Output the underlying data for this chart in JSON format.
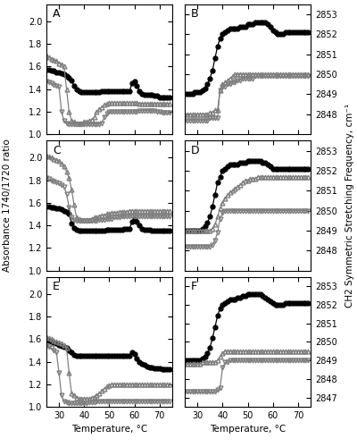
{
  "temp": [
    25,
    26,
    27,
    28,
    29,
    30,
    31,
    32,
    33,
    34,
    35,
    36,
    37,
    38,
    39,
    40,
    41,
    42,
    43,
    44,
    45,
    46,
    47,
    48,
    49,
    50,
    51,
    52,
    53,
    54,
    55,
    56,
    57,
    58,
    59,
    60,
    61,
    62,
    63,
    64,
    65,
    66,
    67,
    68,
    69,
    70,
    71,
    72,
    73,
    74
  ],
  "A_circles": [
    1.57,
    1.57,
    1.56,
    1.56,
    1.55,
    1.55,
    1.54,
    1.53,
    1.52,
    1.5,
    1.48,
    1.43,
    1.4,
    1.38,
    1.37,
    1.37,
    1.37,
    1.37,
    1.37,
    1.37,
    1.37,
    1.37,
    1.38,
    1.38,
    1.38,
    1.38,
    1.38,
    1.38,
    1.38,
    1.38,
    1.38,
    1.38,
    1.38,
    1.38,
    1.45,
    1.47,
    1.43,
    1.38,
    1.36,
    1.35,
    1.35,
    1.35,
    1.35,
    1.34,
    1.34,
    1.33,
    1.33,
    1.33,
    1.33,
    1.33
  ],
  "A_up_tri": [
    1.7,
    1.68,
    1.67,
    1.66,
    1.65,
    1.63,
    1.62,
    1.6,
    1.4,
    1.2,
    1.12,
    1.11,
    1.1,
    1.1,
    1.1,
    1.11,
    1.11,
    1.12,
    1.13,
    1.15,
    1.2,
    1.22,
    1.24,
    1.26,
    1.27,
    1.28,
    1.28,
    1.28,
    1.28,
    1.28,
    1.28,
    1.28,
    1.28,
    1.28,
    1.28,
    1.28,
    1.28,
    1.27,
    1.27,
    1.27,
    1.27,
    1.27,
    1.27,
    1.27,
    1.27,
    1.27,
    1.27,
    1.27,
    1.27,
    1.27
  ],
  "A_down_tri": [
    1.47,
    1.46,
    1.45,
    1.44,
    1.43,
    1.42,
    1.2,
    1.12,
    1.1,
    1.09,
    1.09,
    1.09,
    1.09,
    1.09,
    1.09,
    1.09,
    1.09,
    1.09,
    1.09,
    1.09,
    1.09,
    1.09,
    1.1,
    1.15,
    1.18,
    1.2,
    1.2,
    1.2,
    1.2,
    1.2,
    1.2,
    1.2,
    1.2,
    1.2,
    1.2,
    1.2,
    1.2,
    1.21,
    1.21,
    1.21,
    1.21,
    1.21,
    1.21,
    1.21,
    1.2,
    1.2,
    1.19,
    1.19,
    1.19,
    1.19
  ],
  "B_circles": [
    2849.0,
    2849.0,
    2849.0,
    2849.0,
    2849.1,
    2849.1,
    2849.1,
    2849.2,
    2849.3,
    2849.5,
    2849.8,
    2850.2,
    2850.8,
    2851.4,
    2851.8,
    2852.0,
    2852.1,
    2852.2,
    2852.3,
    2852.3,
    2852.3,
    2852.3,
    2852.4,
    2852.4,
    2852.4,
    2852.5,
    2852.5,
    2852.5,
    2852.6,
    2852.6,
    2852.6,
    2852.6,
    2852.6,
    2852.5,
    2852.4,
    2852.2,
    2852.1,
    2852.0,
    2852.0,
    2852.0,
    2852.1,
    2852.1,
    2852.1,
    2852.1,
    2852.1,
    2852.1,
    2852.1,
    2852.1,
    2852.1,
    2852.1
  ],
  "B_up_tri": [
    2848.0,
    2848.0,
    2848.0,
    2848.0,
    2848.0,
    2848.0,
    2848.0,
    2848.0,
    2848.0,
    2848.0,
    2848.1,
    2848.1,
    2848.2,
    2848.2,
    2849.2,
    2849.5,
    2849.6,
    2849.7,
    2849.8,
    2849.9,
    2850.0,
    2850.0,
    2850.0,
    2850.0,
    2850.0,
    2850.0,
    2850.0,
    2850.0,
    2850.0,
    2850.0,
    2850.0,
    2850.0,
    2850.0,
    2850.0,
    2850.0,
    2850.0,
    2850.0,
    2850.0,
    2850.0,
    2850.0,
    2850.0,
    2850.0,
    2850.0,
    2850.0,
    2850.0,
    2850.0,
    2850.0,
    2850.0,
    2850.0,
    2850.0
  ],
  "B_down_tri": [
    2847.7,
    2847.7,
    2847.7,
    2847.7,
    2847.7,
    2847.7,
    2847.7,
    2847.7,
    2847.7,
    2847.7,
    2847.8,
    2847.8,
    2847.8,
    2847.8,
    2849.2,
    2849.4,
    2849.4,
    2849.5,
    2849.5,
    2849.6,
    2849.6,
    2849.7,
    2849.7,
    2849.8,
    2849.8,
    2849.8,
    2849.8,
    2849.8,
    2849.9,
    2849.9,
    2849.9,
    2849.9,
    2849.9,
    2849.9,
    2849.9,
    2849.9,
    2849.9,
    2849.9,
    2849.9,
    2849.9,
    2849.9,
    2849.9,
    2849.9,
    2849.9,
    2849.9,
    2849.9,
    2849.9,
    2849.9,
    2849.9,
    2849.9
  ],
  "C_circles": [
    1.57,
    1.57,
    1.56,
    1.56,
    1.55,
    1.55,
    1.54,
    1.53,
    1.52,
    1.5,
    1.42,
    1.38,
    1.36,
    1.35,
    1.35,
    1.35,
    1.35,
    1.35,
    1.35,
    1.35,
    1.35,
    1.35,
    1.35,
    1.35,
    1.36,
    1.36,
    1.36,
    1.36,
    1.36,
    1.36,
    1.36,
    1.37,
    1.37,
    1.37,
    1.43,
    1.46,
    1.43,
    1.4,
    1.37,
    1.36,
    1.36,
    1.36,
    1.35,
    1.35,
    1.35,
    1.35,
    1.35,
    1.35,
    1.35,
    1.35
  ],
  "C_up_tri": [
    2.02,
    2.01,
    2.0,
    1.99,
    1.98,
    1.97,
    1.95,
    1.92,
    1.88,
    1.82,
    1.72,
    1.58,
    1.47,
    1.46,
    1.45,
    1.45,
    1.45,
    1.45,
    1.46,
    1.47,
    1.47,
    1.48,
    1.49,
    1.49,
    1.5,
    1.5,
    1.51,
    1.51,
    1.51,
    1.52,
    1.52,
    1.52,
    1.52,
    1.53,
    1.53,
    1.53,
    1.53,
    1.53,
    1.53,
    1.53,
    1.53,
    1.53,
    1.53,
    1.53,
    1.53,
    1.53,
    1.53,
    1.53,
    1.53,
    1.53
  ],
  "C_down_tri": [
    1.82,
    1.81,
    1.8,
    1.79,
    1.78,
    1.77,
    1.76,
    1.74,
    1.68,
    1.56,
    1.47,
    1.45,
    1.44,
    1.44,
    1.44,
    1.44,
    1.44,
    1.44,
    1.44,
    1.44,
    1.44,
    1.45,
    1.45,
    1.45,
    1.46,
    1.46,
    1.46,
    1.47,
    1.47,
    1.47,
    1.48,
    1.48,
    1.48,
    1.48,
    1.48,
    1.48,
    1.48,
    1.48,
    1.48,
    1.48,
    1.48,
    1.48,
    1.48,
    1.48,
    1.48,
    1.48,
    1.48,
    1.48,
    1.48,
    1.48
  ],
  "D_circles": [
    2849.0,
    2849.0,
    2849.0,
    2849.0,
    2849.0,
    2849.0,
    2849.0,
    2849.1,
    2849.2,
    2849.4,
    2849.7,
    2850.2,
    2850.8,
    2851.4,
    2851.7,
    2852.0,
    2852.1,
    2852.2,
    2852.3,
    2852.3,
    2852.3,
    2852.3,
    2852.4,
    2852.4,
    2852.4,
    2852.5,
    2852.5,
    2852.5,
    2852.5,
    2852.5,
    2852.5,
    2852.4,
    2852.4,
    2852.3,
    2852.2,
    2852.1,
    2852.1,
    2852.1,
    2852.1,
    2852.1,
    2852.1,
    2852.1,
    2852.1,
    2852.1,
    2852.1,
    2852.1,
    2852.1,
    2852.1,
    2852.1,
    2852.1
  ],
  "D_up_tri": [
    2849.0,
    2849.0,
    2849.0,
    2849.0,
    2849.0,
    2849.0,
    2849.0,
    2849.0,
    2849.0,
    2849.0,
    2849.0,
    2849.1,
    2849.3,
    2849.7,
    2850.1,
    2850.4,
    2850.6,
    2850.8,
    2850.9,
    2851.0,
    2851.1,
    2851.2,
    2851.3,
    2851.4,
    2851.5,
    2851.5,
    2851.6,
    2851.6,
    2851.6,
    2851.7,
    2851.7,
    2851.7,
    2851.7,
    2851.7,
    2851.7,
    2851.7,
    2851.7,
    2851.7,
    2851.7,
    2851.7,
    2851.7,
    2851.7,
    2851.7,
    2851.7,
    2851.7,
    2851.7,
    2851.7,
    2851.7,
    2851.7,
    2851.7
  ],
  "D_down_tri": [
    2848.2,
    2848.2,
    2848.2,
    2848.2,
    2848.2,
    2848.2,
    2848.2,
    2848.2,
    2848.2,
    2848.2,
    2848.2,
    2848.3,
    2848.5,
    2848.9,
    2849.6,
    2849.9,
    2850.0,
    2850.0,
    2850.0,
    2850.0,
    2850.0,
    2850.0,
    2850.0,
    2850.0,
    2850.0,
    2850.0,
    2850.0,
    2850.0,
    2850.0,
    2850.0,
    2850.0,
    2850.0,
    2850.0,
    2850.0,
    2850.0,
    2850.0,
    2850.0,
    2850.0,
    2850.0,
    2850.0,
    2850.0,
    2850.0,
    2850.0,
    2850.0,
    2850.0,
    2850.0,
    2850.0,
    2850.0,
    2850.0,
    2850.0
  ],
  "E_circles": [
    1.6,
    1.59,
    1.58,
    1.57,
    1.56,
    1.55,
    1.54,
    1.53,
    1.52,
    1.5,
    1.48,
    1.46,
    1.45,
    1.45,
    1.45,
    1.45,
    1.45,
    1.45,
    1.45,
    1.45,
    1.45,
    1.45,
    1.45,
    1.45,
    1.45,
    1.45,
    1.45,
    1.45,
    1.45,
    1.45,
    1.45,
    1.45,
    1.45,
    1.45,
    1.48,
    1.47,
    1.43,
    1.4,
    1.38,
    1.37,
    1.36,
    1.35,
    1.35,
    1.34,
    1.34,
    1.34,
    1.33,
    1.33,
    1.33,
    1.33
  ],
  "E_up_tri": [
    1.62,
    1.61,
    1.6,
    1.59,
    1.58,
    1.57,
    1.56,
    1.55,
    1.52,
    1.3,
    1.12,
    1.1,
    1.08,
    1.07,
    1.07,
    1.07,
    1.07,
    1.07,
    1.08,
    1.09,
    1.1,
    1.12,
    1.14,
    1.16,
    1.18,
    1.19,
    1.2,
    1.2,
    1.2,
    1.2,
    1.2,
    1.2,
    1.2,
    1.2,
    1.2,
    1.2,
    1.2,
    1.2,
    1.2,
    1.2,
    1.2,
    1.2,
    1.2,
    1.2,
    1.2,
    1.2,
    1.2,
    1.2,
    1.2,
    1.2
  ],
  "E_down_tri": [
    1.54,
    1.53,
    1.52,
    1.5,
    1.48,
    1.3,
    1.1,
    1.05,
    1.04,
    1.03,
    1.03,
    1.03,
    1.03,
    1.03,
    1.03,
    1.03,
    1.03,
    1.04,
    1.04,
    1.04,
    1.05,
    1.05,
    1.05,
    1.05,
    1.05,
    1.05,
    1.05,
    1.05,
    1.05,
    1.05,
    1.05,
    1.05,
    1.05,
    1.05,
    1.05,
    1.05,
    1.05,
    1.05,
    1.05,
    1.05,
    1.05,
    1.05,
    1.05,
    1.05,
    1.05,
    1.05,
    1.05,
    1.05,
    1.05,
    1.05
  ],
  "F_circles": [
    2849.0,
    2849.0,
    2849.0,
    2849.0,
    2849.0,
    2849.0,
    2849.0,
    2849.1,
    2849.2,
    2849.4,
    2849.7,
    2850.2,
    2850.8,
    2851.4,
    2851.8,
    2852.0,
    2852.1,
    2852.2,
    2852.3,
    2852.3,
    2852.3,
    2852.4,
    2852.4,
    2852.5,
    2852.5,
    2852.6,
    2852.6,
    2852.6,
    2852.6,
    2852.6,
    2852.6,
    2852.5,
    2852.4,
    2852.3,
    2852.2,
    2852.1,
    2852.0,
    2852.0,
    2852.0,
    2852.0,
    2852.1,
    2852.1,
    2852.1,
    2852.1,
    2852.1,
    2852.1,
    2852.1,
    2852.1,
    2852.1,
    2852.1
  ],
  "F_up_tri": [
    2848.8,
    2848.8,
    2848.8,
    2848.8,
    2848.8,
    2848.8,
    2848.8,
    2848.9,
    2848.9,
    2848.9,
    2848.9,
    2848.9,
    2848.9,
    2849.0,
    2849.2,
    2849.4,
    2849.5,
    2849.5,
    2849.5,
    2849.5,
    2849.5,
    2849.5,
    2849.5,
    2849.5,
    2849.5,
    2849.5,
    2849.5,
    2849.5,
    2849.5,
    2849.5,
    2849.5,
    2849.5,
    2849.5,
    2849.5,
    2849.5,
    2849.5,
    2849.5,
    2849.5,
    2849.5,
    2849.5,
    2849.5,
    2849.5,
    2849.5,
    2849.5,
    2849.5,
    2849.5,
    2849.5,
    2849.5,
    2849.5,
    2849.5
  ],
  "F_down_tri": [
    2847.3,
    2847.3,
    2847.3,
    2847.3,
    2847.3,
    2847.3,
    2847.3,
    2847.3,
    2847.3,
    2847.3,
    2847.3,
    2847.3,
    2847.3,
    2847.4,
    2847.5,
    2848.6,
    2848.9,
    2848.9,
    2849.0,
    2849.0,
    2849.0,
    2849.0,
    2849.0,
    2849.0,
    2849.0,
    2849.0,
    2849.0,
    2849.0,
    2849.0,
    2849.0,
    2849.0,
    2849.0,
    2849.0,
    2849.0,
    2849.0,
    2849.0,
    2849.0,
    2849.0,
    2849.0,
    2849.0,
    2849.0,
    2849.0,
    2849.0,
    2849.0,
    2849.0,
    2849.0,
    2849.0,
    2849.0,
    2849.0,
    2849.0
  ],
  "left_ylim": [
    1.0,
    2.15
  ],
  "left_yticks": [
    1.0,
    1.2,
    1.4,
    1.6,
    1.8,
    2.0
  ],
  "BDF_ylim": [
    2847.0,
    2853.5
  ],
  "BDF_yticks": [
    2848,
    2849,
    2850,
    2851,
    2852,
    2853
  ],
  "F_ylim": [
    2846.5,
    2853.5
  ],
  "F_yticks": [
    2847,
    2848,
    2849,
    2850,
    2851,
    2852,
    2853
  ],
  "xlim": [
    25,
    75
  ],
  "xticks": [
    30,
    40,
    50,
    60,
    70
  ],
  "left_ylabel": "Absorbance 1740/1720 ratio",
  "right_ylabel": "CH2 Symmetric Stretching Frequency, cm⁻¹",
  "xlabel": "Temperature, °C"
}
